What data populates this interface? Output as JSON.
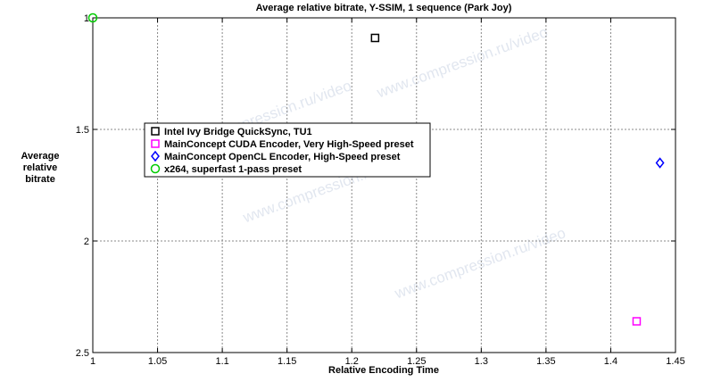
{
  "chart_data": {
    "type": "scatter",
    "title": "Average relative bitrate, Y-SSIM, 1 sequence (Park Joy)",
    "xlabel": "Relative Encoding Time",
    "ylabel": [
      "Average",
      "relative",
      "bitrate"
    ],
    "xlim": [
      1,
      1.45
    ],
    "ylim": [
      1,
      2.5
    ],
    "y_reversed": true,
    "grid": true,
    "legend_position": "upper-left-center",
    "xticks": [
      "1",
      "1.05",
      "1.1",
      "1.15",
      "1.2",
      "1.25",
      "1.3",
      "1.35",
      "1.4",
      "1.45"
    ],
    "yticks": [
      "1",
      "1.5",
      "2",
      "2.5"
    ],
    "watermark": "www.compression.ru/video",
    "series": [
      {
        "name": "Intel Ivy Bridge QuickSync, TU1",
        "marker": "square",
        "color": "#000000",
        "x": [
          1.218
        ],
        "y": [
          1.09
        ]
      },
      {
        "name": "MainConcept CUDA Encoder, Very High-Speed preset",
        "marker": "square",
        "color": "#ff00ff",
        "x": [
          1.42
        ],
        "y": [
          2.36
        ]
      },
      {
        "name": "MainConcept OpenCL Encoder, High-Speed preset",
        "marker": "diamond",
        "color": "#0000ff",
        "x": [
          1.438
        ],
        "y": [
          1.65
        ]
      },
      {
        "name": "x264, superfast 1-pass preset",
        "marker": "circle",
        "color": "#00cc00",
        "x": [
          1.0
        ],
        "y": [
          1.0
        ]
      }
    ]
  }
}
